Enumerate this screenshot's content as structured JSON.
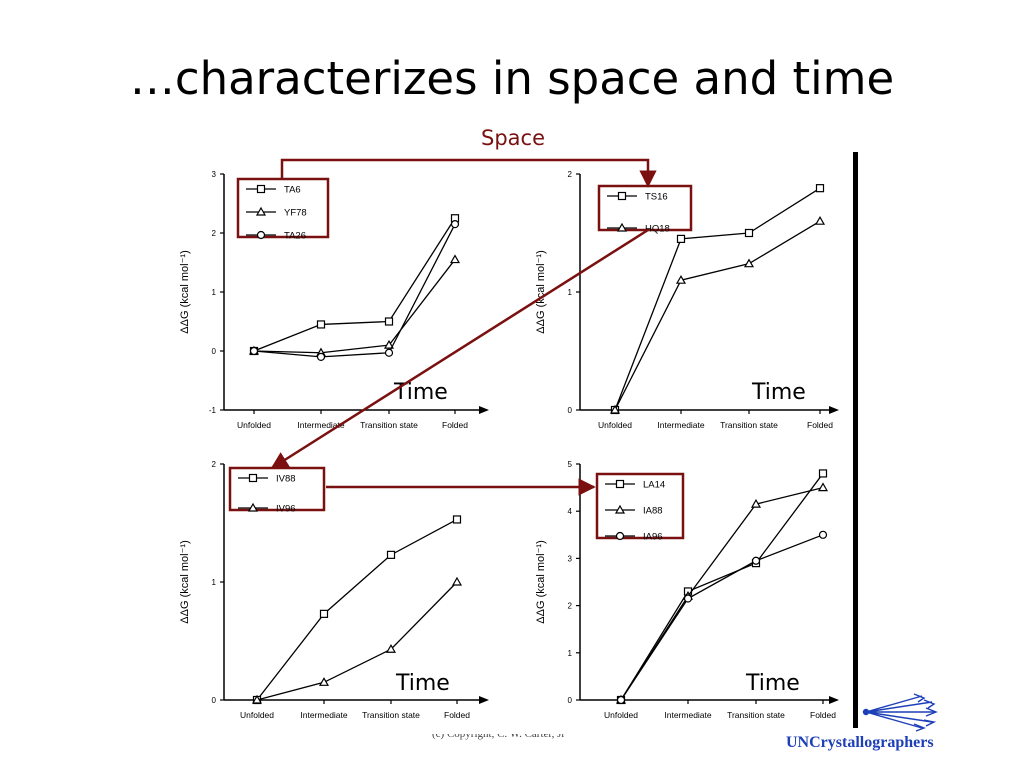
{
  "title": "…characterizes in space and time",
  "space_label": "Space",
  "time_label": "Time",
  "copyright": "(c) Copyright, C. W. Carter, Jr",
  "brand": "UNCrystallographers",
  "colors": {
    "arrow": "#7a1010",
    "legend_box": "#7a1010",
    "ink": "#000000",
    "brand": "#1d3fb8"
  },
  "chart_data": [
    {
      "type": "line",
      "ylabel": "ΔΔG (kcal mol⁻¹)",
      "categories": [
        "Unfolded",
        "Intermediate",
        "Transition state",
        "Folded"
      ],
      "ylim": [
        -1,
        3
      ],
      "yticks": [
        "-1",
        "0",
        "1",
        "2",
        "3"
      ],
      "series": [
        {
          "name": "TA6",
          "marker": "square",
          "values": [
            0,
            0.45,
            0.5,
            2.25
          ]
        },
        {
          "name": "YF78",
          "marker": "triangle",
          "values": [
            0,
            -0.03,
            0.1,
            1.55
          ]
        },
        {
          "name": "TA26",
          "marker": "circle",
          "values": [
            0,
            -0.1,
            -0.03,
            2.15
          ]
        }
      ]
    },
    {
      "type": "line",
      "ylabel": "ΔΔG (kcal mol⁻¹)",
      "categories": [
        "Unfolded",
        "Intermediate",
        "Transition state",
        "Folded"
      ],
      "ylim": [
        0,
        2
      ],
      "yticks": [
        "0",
        "1",
        "2"
      ],
      "series": [
        {
          "name": "TS16",
          "marker": "square",
          "values": [
            0,
            1.45,
            1.5,
            1.88
          ]
        },
        {
          "name": "HQ18",
          "marker": "triangle",
          "values": [
            0,
            1.1,
            1.24,
            1.6
          ]
        }
      ]
    },
    {
      "type": "line",
      "ylabel": "ΔΔG (kcal mol⁻¹)",
      "categories": [
        "Unfolded",
        "Intermediate",
        "Transition state",
        "Folded"
      ],
      "ylim": [
        0,
        2
      ],
      "yticks": [
        "0",
        "1",
        "2"
      ],
      "series": [
        {
          "name": "IV88",
          "marker": "square",
          "values": [
            0,
            0.73,
            1.23,
            1.53
          ]
        },
        {
          "name": "IV96",
          "marker": "triangle",
          "values": [
            0,
            0.15,
            0.43,
            1.0
          ]
        }
      ]
    },
    {
      "type": "line",
      "ylabel": "ΔΔG (kcal mol⁻¹)",
      "categories": [
        "Unfolded",
        "Intermediate",
        "Transition state",
        "Folded"
      ],
      "ylim": [
        0,
        5
      ],
      "yticks": [
        "0",
        "1",
        "2",
        "3",
        "4",
        "5"
      ],
      "series": [
        {
          "name": "LA14",
          "marker": "square",
          "values": [
            0,
            2.3,
            2.9,
            4.8
          ]
        },
        {
          "name": "IA88",
          "marker": "triangle",
          "values": [
            0,
            2.2,
            4.15,
            4.5
          ]
        },
        {
          "name": "IA96",
          "marker": "circle",
          "values": [
            0,
            2.15,
            2.95,
            3.5
          ]
        }
      ]
    }
  ]
}
